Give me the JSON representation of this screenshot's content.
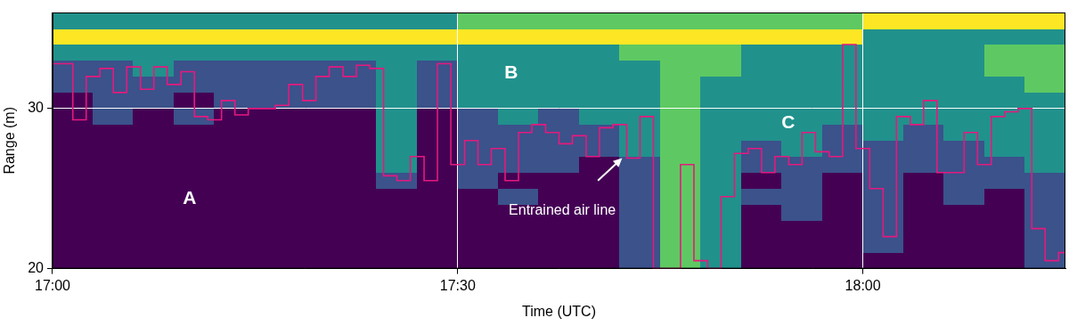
{
  "chart_data": {
    "type": "heatmap",
    "x_label": "Time (UTC)",
    "y_label": "Range (m)",
    "xlim": [
      17.0,
      18.25
    ],
    "xticks": [
      {
        "value": 17.0,
        "label": "17:00"
      },
      {
        "value": 17.5,
        "label": "17:30"
      },
      {
        "value": 18.0,
        "label": "18:00"
      }
    ],
    "ylim": [
      20,
      36
    ],
    "yticks": [
      20,
      30
    ],
    "grid": true,
    "cells": {
      "x_edges": [
        17.0,
        17.05,
        17.1,
        17.15,
        17.2,
        17.25,
        17.3,
        17.35,
        17.4,
        17.45,
        17.5,
        17.55,
        17.6,
        17.65,
        17.7,
        17.75,
        17.8,
        17.85,
        17.9,
        17.95,
        18.0,
        18.05,
        18.1,
        18.15,
        18.2,
        18.25
      ],
      "y_edges": [
        20,
        21,
        22,
        23,
        24,
        25,
        26,
        27,
        28,
        29,
        30,
        31,
        32,
        33,
        34,
        35,
        36
      ],
      "values": [
        [
          0,
          0,
          0,
          0,
          0,
          0,
          0,
          0,
          0,
          0,
          0,
          0,
          0,
          0,
          1,
          3,
          2,
          0,
          0,
          0,
          0,
          0,
          0,
          0,
          1
        ],
        [
          0,
          0,
          0,
          0,
          0,
          0,
          0,
          0,
          0,
          0,
          0,
          0,
          0,
          0,
          1,
          3,
          2,
          0,
          0,
          0,
          1,
          0,
          0,
          0,
          1
        ],
        [
          0,
          0,
          0,
          0,
          0,
          0,
          0,
          0,
          0,
          0,
          0,
          0,
          0,
          0,
          1,
          3,
          2,
          0,
          0,
          0,
          1,
          0,
          0,
          0,
          1
        ],
        [
          0,
          0,
          0,
          0,
          0,
          0,
          0,
          0,
          0,
          0,
          0,
          0,
          0,
          0,
          1,
          3,
          2,
          0,
          1,
          0,
          1,
          0,
          0,
          0,
          1
        ],
        [
          0,
          0,
          0,
          0,
          0,
          0,
          0,
          0,
          0,
          0,
          0,
          1,
          0,
          0,
          1,
          3,
          2,
          1,
          1,
          0,
          1,
          0,
          1,
          0,
          1
        ],
        [
          0,
          0,
          0,
          0,
          0,
          0,
          0,
          0,
          1,
          0,
          1,
          0,
          0,
          0,
          1,
          3,
          2,
          0,
          1,
          0,
          1,
          0,
          1,
          1,
          1
        ],
        [
          0,
          0,
          0,
          0,
          0,
          0,
          0,
          0,
          2,
          0,
          1,
          1,
          1,
          0,
          1,
          3,
          2,
          1,
          1,
          1,
          1,
          1,
          1,
          1,
          2
        ],
        [
          0,
          0,
          0,
          0,
          0,
          0,
          0,
          0,
          2,
          0,
          1,
          1,
          1,
          1,
          2,
          3,
          2,
          1,
          2,
          1,
          1,
          1,
          1,
          2,
          2
        ],
        [
          0,
          0,
          0,
          0,
          0,
          0,
          0,
          0,
          2,
          0,
          1,
          1,
          1,
          1,
          2,
          3,
          2,
          2,
          2,
          1,
          2,
          1,
          2,
          2,
          2
        ],
        [
          0,
          1,
          0,
          1,
          0,
          0,
          0,
          0,
          2,
          0,
          1,
          2,
          1,
          2,
          2,
          3,
          2,
          2,
          2,
          2,
          2,
          2,
          2,
          2,
          2
        ],
        [
          0,
          1,
          1,
          0,
          1,
          1,
          1,
          1,
          2,
          1,
          2,
          2,
          2,
          2,
          2,
          3,
          2,
          2,
          2,
          2,
          2,
          2,
          2,
          2,
          2
        ],
        [
          1,
          1,
          1,
          1,
          1,
          1,
          1,
          1,
          2,
          1,
          2,
          2,
          2,
          2,
          2,
          3,
          2,
          2,
          2,
          2,
          2,
          2,
          2,
          2,
          3
        ],
        [
          1,
          1,
          2,
          1,
          1,
          1,
          1,
          1,
          2,
          1,
          2,
          2,
          2,
          2,
          2,
          3,
          3,
          2,
          2,
          2,
          2,
          2,
          2,
          3,
          3
        ],
        [
          2,
          2,
          2,
          2,
          2,
          2,
          2,
          2,
          2,
          2,
          2,
          2,
          2,
          2,
          3,
          3,
          3,
          2,
          2,
          2,
          2,
          2,
          2,
          3,
          3
        ],
        [
          4,
          4,
          4,
          4,
          4,
          4,
          4,
          4,
          4,
          4,
          4,
          4,
          4,
          4,
          4,
          4,
          4,
          4,
          4,
          4,
          2,
          2,
          2,
          2,
          2
        ],
        [
          2,
          2,
          2,
          2,
          2,
          2,
          2,
          2,
          2,
          2,
          3,
          3,
          3,
          3,
          3,
          3,
          3,
          3,
          3,
          3,
          4,
          4,
          4,
          4,
          4
        ]
      ]
    },
    "series": [
      {
        "type": "line",
        "color": "#e6197e",
        "marker": "none",
        "line_style": "stepped",
        "x": [
          17.0,
          17.017,
          17.033,
          17.05,
          17.067,
          17.083,
          17.1,
          17.117,
          17.133,
          17.15,
          17.167,
          17.183,
          17.2,
          17.217,
          17.233,
          17.25,
          17.267,
          17.283,
          17.3,
          17.317,
          17.333,
          17.35,
          17.367,
          17.383,
          17.4,
          17.417,
          17.433,
          17.45,
          17.467,
          17.483,
          17.5,
          17.517,
          17.533,
          17.55,
          17.567,
          17.583,
          17.6,
          17.617,
          17.633,
          17.65,
          17.667,
          17.683,
          17.7,
          17.717,
          17.733,
          17.75,
          17.767,
          17.783,
          17.8,
          17.817,
          17.833,
          17.85,
          17.867,
          17.883,
          17.9,
          17.917,
          17.933,
          17.95,
          17.967,
          17.983,
          18.0,
          18.017,
          18.033,
          18.05,
          18.067,
          18.083,
          18.1,
          18.117,
          18.133,
          18.15,
          18.167,
          18.183,
          18.2,
          18.217,
          18.233,
          18.25
        ],
        "values": [
          32.8,
          32.8,
          29.3,
          32.0,
          32.5,
          31.0,
          32.6,
          31.2,
          32.6,
          31.5,
          32.3,
          29.5,
          29.3,
          30.5,
          29.6,
          30.0,
          30.0,
          30.2,
          31.5,
          30.5,
          32.0,
          32.6,
          32.0,
          32.7,
          32.5,
          25.8,
          25.5,
          27.0,
          25.5,
          32.8,
          26.5,
          28.0,
          26.5,
          27.5,
          25.5,
          28.5,
          29.0,
          28.5,
          27.8,
          28.3,
          27.0,
          28.8,
          29.0,
          26.9,
          29.5,
          20.0,
          20.0,
          26.5,
          20.5,
          20.0,
          24.5,
          27.2,
          27.5,
          26.0,
          27.0,
          26.5,
          28.5,
          27.3,
          27.0,
          34.0,
          27.5,
          25.0,
          22.0,
          29.5,
          29.0,
          30.5,
          26.0,
          26.0,
          28.5,
          26.5,
          29.5,
          29.8,
          30.0,
          22.5,
          20.5,
          21.0
        ]
      }
    ],
    "annotations": [
      {
        "text": "A",
        "x": 17.169,
        "y": 24.36
      },
      {
        "text": "B",
        "x": 17.566,
        "y": 32.2
      },
      {
        "text": "C",
        "x": 17.908,
        "y": 29.1
      },
      {
        "text": "Entrained air line",
        "x": 17.629,
        "y": 23.6,
        "arrow_from": [
          17.673,
          25.5
        ],
        "arrow_to": [
          17.703,
          26.9
        ]
      }
    ]
  }
}
